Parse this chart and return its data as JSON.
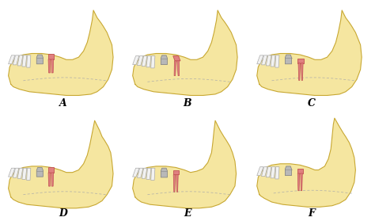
{
  "background": "#ffffff",
  "bone_color": "#f5e6a0",
  "bone_outline": "#c8a832",
  "white_tooth_color": "#f2f2f2",
  "white_tooth_outline": "#aaaaaa",
  "gray_tooth_color": "#b8b8b8",
  "gray_tooth_outline": "#888888",
  "red_tooth_color": "#e08080",
  "red_tooth_outline": "#c05050",
  "nerve_color": "#aaaaaa",
  "label_fontsize": 9,
  "label_fontweight": "bold",
  "variants": [
    "A",
    "B",
    "C",
    "D",
    "E",
    "F"
  ]
}
